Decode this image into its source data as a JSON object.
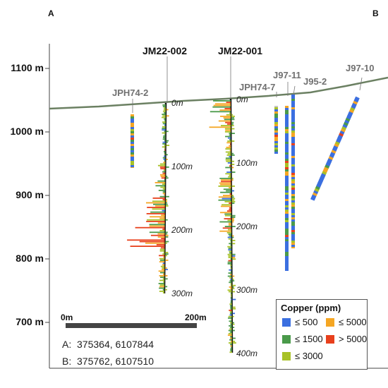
{
  "section": {
    "corner_a": "A",
    "corner_b": "B",
    "elevation_labels": [
      "1100 m",
      "1000 m",
      "900 m",
      "800 m",
      "700 m"
    ],
    "scale_bar": {
      "start": "0m",
      "end": "200m"
    },
    "coordinates": [
      {
        "point": "A:",
        "value": "375364, 6107844"
      },
      {
        "point": "B:",
        "value": "375762, 6107510"
      }
    ]
  },
  "drillholes": [
    {
      "id": "jm22-002",
      "name": "JM22-002",
      "depth_labels": [
        "0m",
        "100m",
        "200m",
        "300m"
      ]
    },
    {
      "id": "jm22-001",
      "name": "JM22-001",
      "depth_labels": [
        "0m",
        "100m",
        "200m",
        "300m",
        "400m"
      ]
    },
    {
      "id": "jph74-2",
      "name": "JPH74-2"
    },
    {
      "id": "jph74-7",
      "name": "JPH74-7"
    },
    {
      "id": "j97-11",
      "name": "J97-11"
    },
    {
      "id": "j95-2",
      "name": "J95-2"
    },
    {
      "id": "j97-10",
      "name": "J97-10"
    }
  ],
  "legend": {
    "title": "Copper (ppm)",
    "items": [
      {
        "label": "≤ 500",
        "color": "#3b6fe0"
      },
      {
        "label": "≤ 5000",
        "color": "#f5a623"
      },
      {
        "label": "≤ 1500",
        "color": "#4a9a4a"
      },
      {
        "label": "> 5000",
        "color": "#e8401c"
      },
      {
        "label": "≤ 3000",
        "color": "#a8c227"
      }
    ]
  },
  "colors": {
    "topography": "#6b8062",
    "trace": "#111111"
  }
}
